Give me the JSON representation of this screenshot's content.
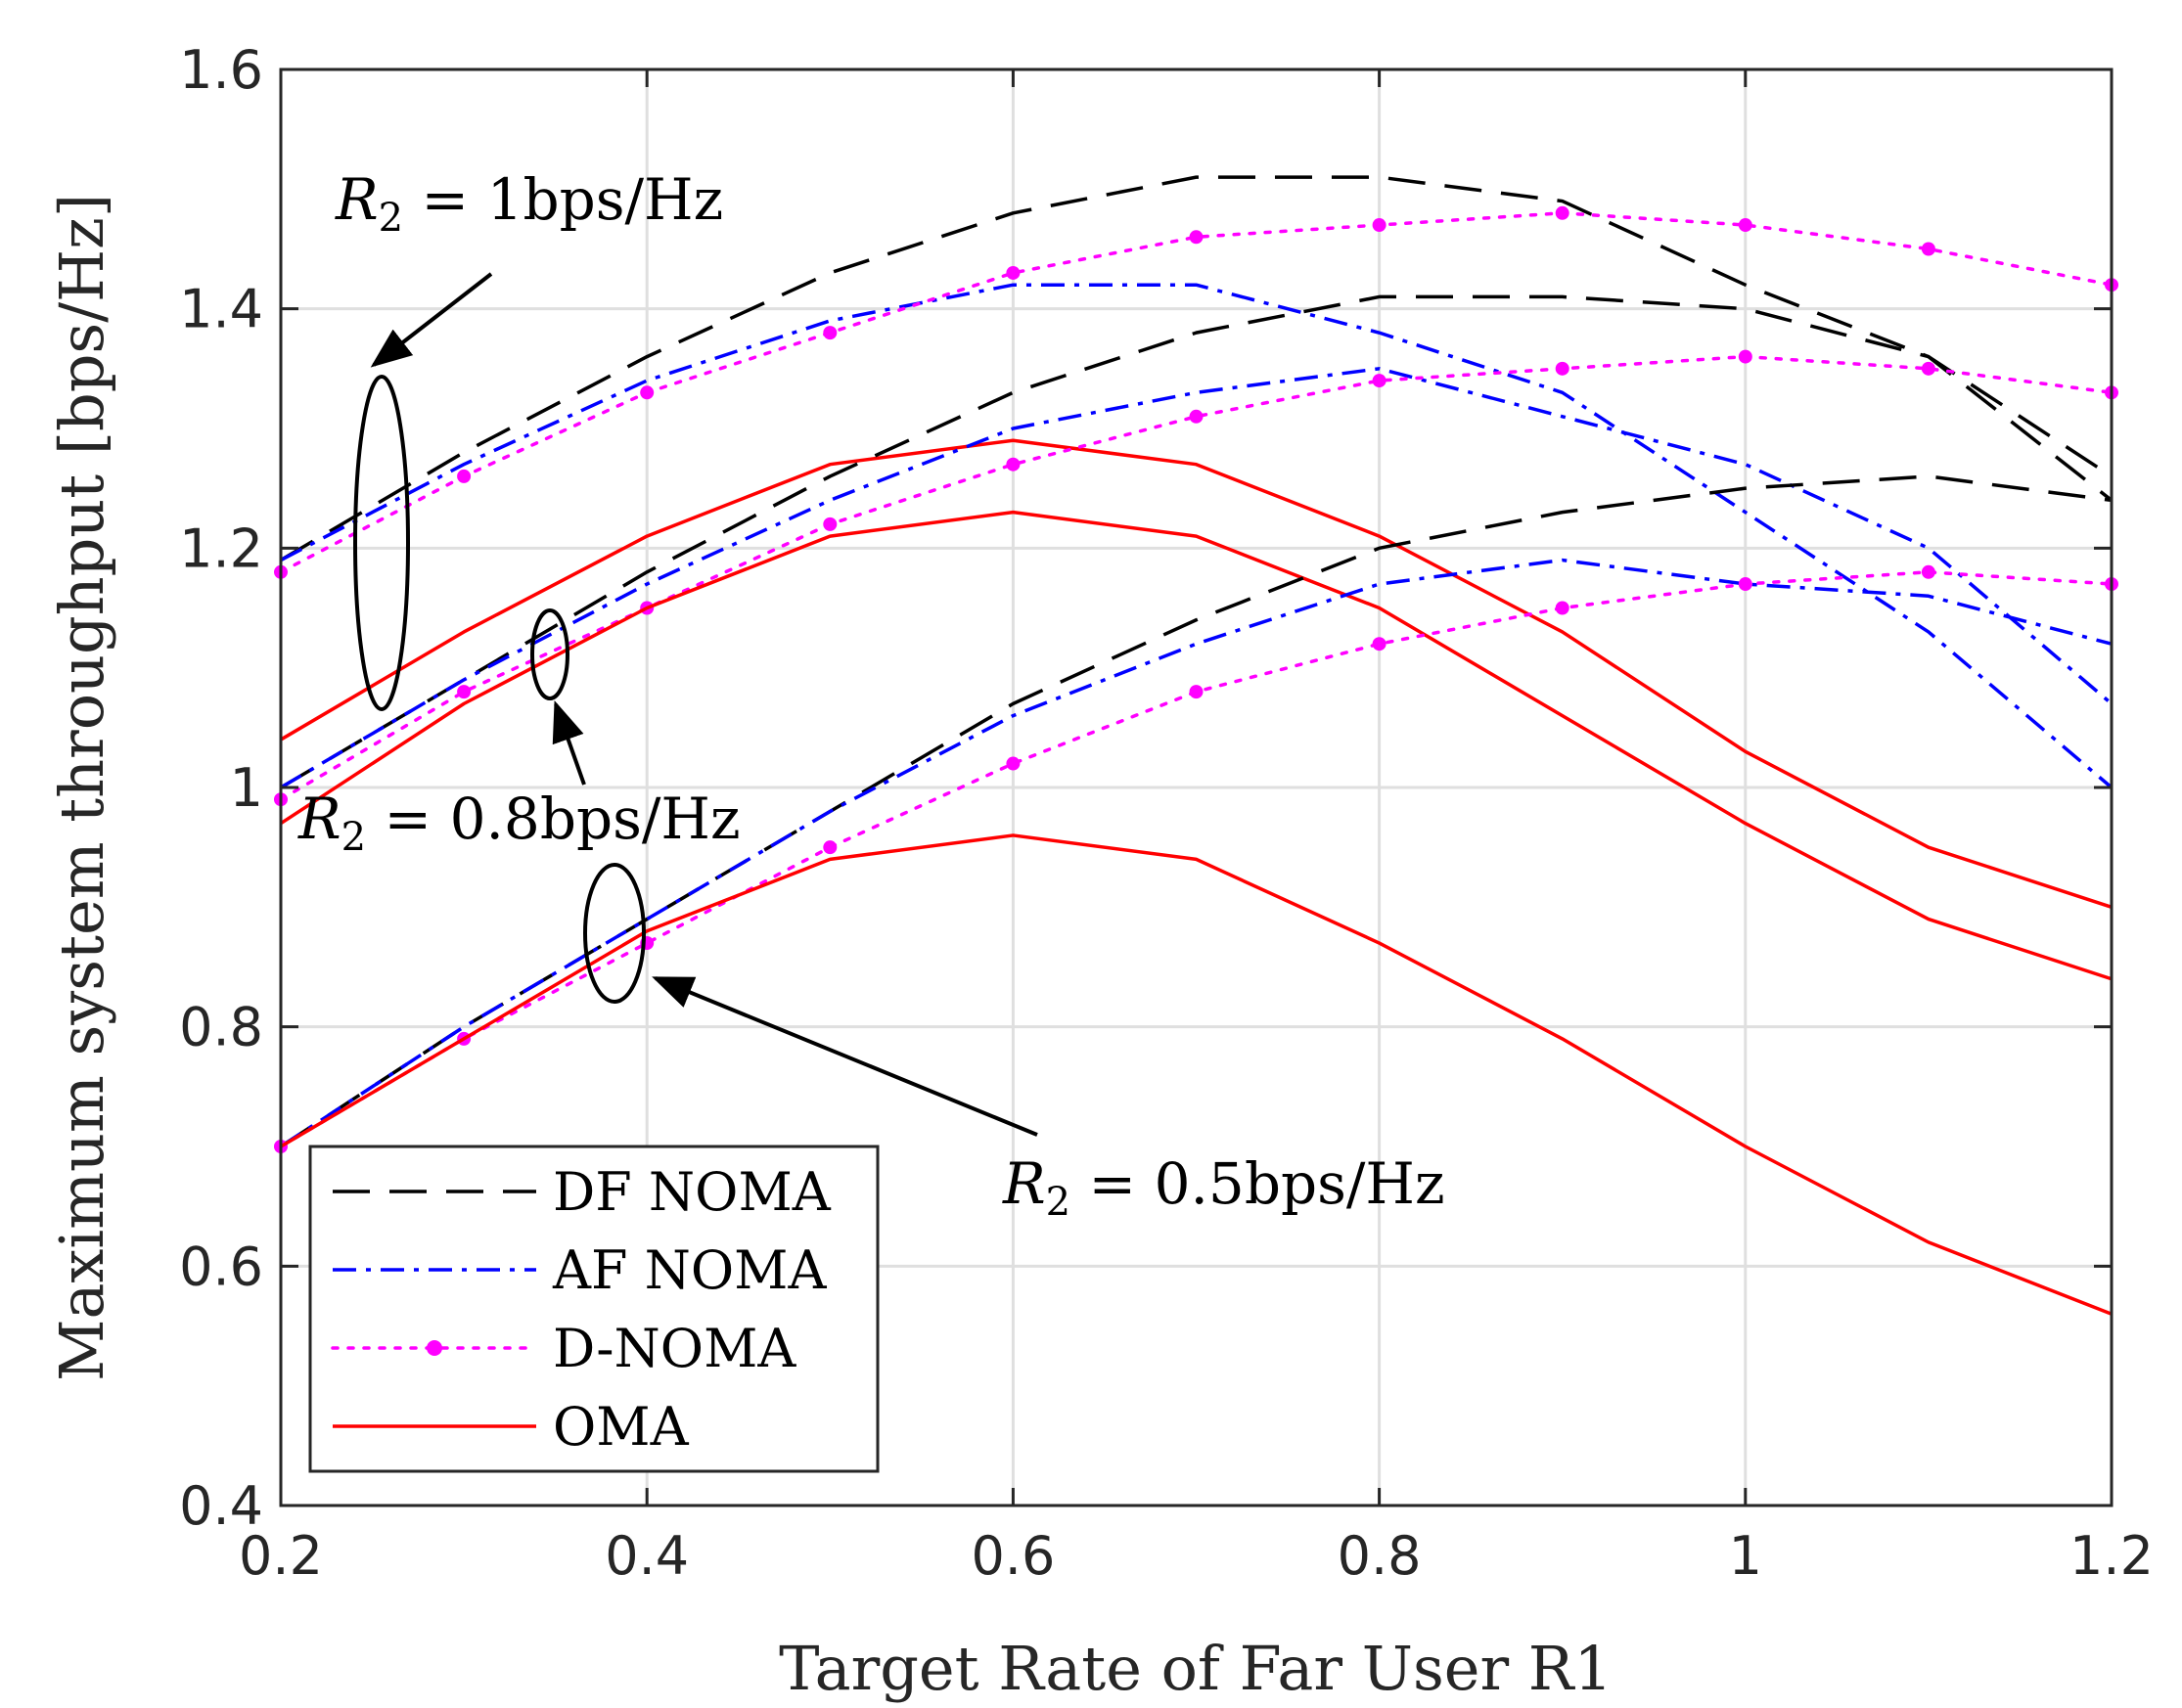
{
  "chart_data": {
    "type": "line",
    "xlabel": "Target Rate of Far User R1",
    "ylabel": "Maximum system throughput [bps/Hz]",
    "xlim": [
      0.2,
      1.2
    ],
    "ylim": [
      0.4,
      1.6
    ],
    "xticks": [
      "0.2",
      "0.4",
      "0.6",
      "0.8",
      "1",
      "1.2"
    ],
    "yticks": [
      "0.4",
      "0.6",
      "0.8",
      "1",
      "1.2",
      "1.4",
      "1.6"
    ],
    "grid": true,
    "x": [
      0.2,
      0.3,
      0.4,
      0.5,
      0.6,
      0.7,
      0.8,
      0.9,
      1.0,
      1.1,
      1.2
    ],
    "series": [
      {
        "name": "DF NOMA",
        "group": "R2 = 1bps/Hz",
        "color": "#000000",
        "style": "dashed",
        "values": [
          1.19,
          1.28,
          1.36,
          1.43,
          1.48,
          1.51,
          1.51,
          1.49,
          1.42,
          1.36,
          1.26
        ]
      },
      {
        "name": "AF NOMA",
        "group": "R2 = 1bps/Hz",
        "color": "#0000ff",
        "style": "dashdot",
        "values": [
          1.19,
          1.27,
          1.34,
          1.39,
          1.42,
          1.42,
          1.38,
          1.33,
          1.23,
          1.13,
          1.0
        ]
      },
      {
        "name": "D-NOMA",
        "group": "R2 = 1bps/Hz",
        "color": "#ff00ff",
        "style": "dotted",
        "values": [
          1.18,
          1.26,
          1.33,
          1.38,
          1.43,
          1.46,
          1.47,
          1.48,
          1.47,
          1.45,
          1.42
        ]
      },
      {
        "name": "OMA",
        "group": "R2 = 1bps/Hz",
        "color": "#ff0000",
        "style": "solid",
        "values": [
          1.04,
          1.13,
          1.21,
          1.27,
          1.29,
          1.27,
          1.21,
          1.13,
          1.03,
          0.95,
          0.9
        ]
      },
      {
        "name": "DF NOMA",
        "group": "R2 = 0.8bps/Hz",
        "color": "#000000",
        "style": "dashed",
        "values": [
          1.0,
          1.09,
          1.18,
          1.26,
          1.33,
          1.38,
          1.41,
          1.41,
          1.4,
          1.36,
          1.24
        ]
      },
      {
        "name": "AF NOMA",
        "group": "R2 = 0.8bps/Hz",
        "color": "#0000ff",
        "style": "dashdot",
        "values": [
          1.0,
          1.09,
          1.17,
          1.24,
          1.3,
          1.33,
          1.35,
          1.31,
          1.27,
          1.2,
          1.07
        ]
      },
      {
        "name": "D-NOMA",
        "group": "R2 = 0.8bps/Hz",
        "color": "#ff00ff",
        "style": "dotted",
        "values": [
          0.99,
          1.08,
          1.15,
          1.22,
          1.27,
          1.31,
          1.34,
          1.35,
          1.36,
          1.35,
          1.33
        ]
      },
      {
        "name": "OMA",
        "group": "R2 = 0.8bps/Hz",
        "color": "#ff0000",
        "style": "solid",
        "values": [
          0.97,
          1.07,
          1.15,
          1.21,
          1.23,
          1.21,
          1.15,
          1.06,
          0.97,
          0.89,
          0.84
        ]
      },
      {
        "name": "DF NOMA",
        "group": "R2 = 0.5bps/Hz",
        "color": "#000000",
        "style": "dashed",
        "values": [
          0.7,
          0.8,
          0.89,
          0.98,
          1.07,
          1.14,
          1.2,
          1.23,
          1.25,
          1.26,
          1.24
        ]
      },
      {
        "name": "AF NOMA",
        "group": "R2 = 0.5bps/Hz",
        "color": "#0000ff",
        "style": "dashdot",
        "values": [
          0.7,
          0.8,
          0.89,
          0.98,
          1.06,
          1.12,
          1.17,
          1.19,
          1.17,
          1.16,
          1.12
        ]
      },
      {
        "name": "D-NOMA",
        "group": "R2 = 0.5bps/Hz",
        "color": "#ff00ff",
        "style": "dotted",
        "values": [
          0.7,
          0.79,
          0.87,
          0.95,
          1.02,
          1.08,
          1.12,
          1.15,
          1.17,
          1.18,
          1.17
        ]
      },
      {
        "name": "OMA",
        "group": "R2 = 0.5bps/Hz",
        "color": "#ff0000",
        "style": "solid",
        "values": [
          0.7,
          0.79,
          0.88,
          0.94,
          0.96,
          0.94,
          0.87,
          0.79,
          0.7,
          0.62,
          0.56
        ]
      }
    ],
    "legend": {
      "placement": "bottom-left",
      "entries": [
        {
          "label": "DF NOMA",
          "color": "#000000",
          "style": "dashed"
        },
        {
          "label": "AF NOMA",
          "color": "#0000ff",
          "style": "dashdot"
        },
        {
          "label": "D-NOMA",
          "color": "#ff00ff",
          "style": "dotted"
        },
        {
          "label": "OMA",
          "color": "#ff0000",
          "style": "solid"
        }
      ]
    },
    "annotations": [
      {
        "text": "R2 = 1bps/Hz",
        "group": "R2 = 1bps/Hz"
      },
      {
        "text": "R2 = 0.8bps/Hz",
        "group": "R2 = 0.8bps/Hz"
      },
      {
        "text": "R2 = 0.5bps/Hz",
        "group": "R2 = 0.5bps/Hz"
      }
    ]
  }
}
